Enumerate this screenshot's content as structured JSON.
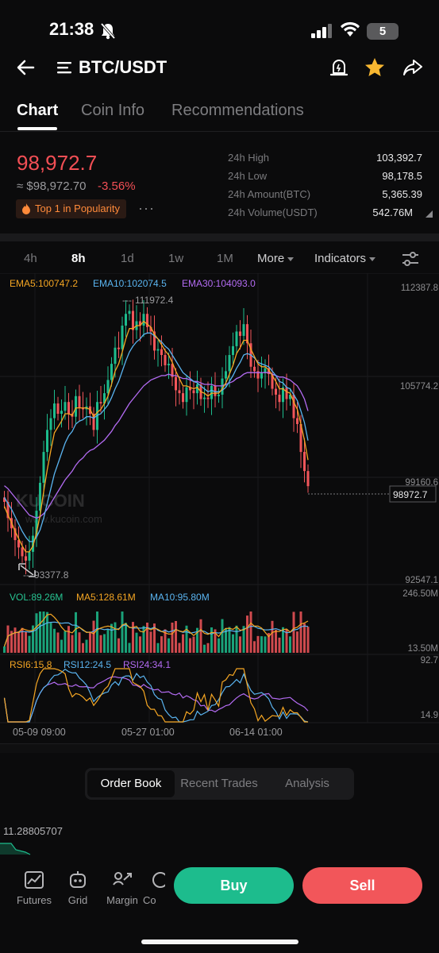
{
  "status_bar": {
    "time": "21:38",
    "battery": "5"
  },
  "header": {
    "pair": "BTC/USDT"
  },
  "tabs": [
    "Chart",
    "Coin Info",
    "Recommendations"
  ],
  "ticker": {
    "last_price": "98,972.7",
    "fiat_price": "≈ $98,972.70",
    "change": "-3.56%",
    "badge": "Top 1 in Popularity",
    "more": "···"
  },
  "stats": {
    "high_label": "24h High",
    "high": "103,392.7",
    "low_label": "24h Low",
    "low": "98,178.5",
    "amount_label": "24h Amount(BTC)",
    "amount": "5,365.39",
    "volume_label": "24h Volume(USDT)",
    "volume": "542.76M"
  },
  "timeframes": [
    "4h",
    "8h",
    "1d",
    "1w",
    "1M"
  ],
  "toolbar": {
    "more": "More",
    "indicators": "Indicators"
  },
  "chart_data": {
    "type": "candlestick",
    "interval": "8h",
    "indicators": {
      "ema5": "EMA5:100747.2",
      "ema10": "EMA10:102074.5",
      "ema30": "EMA30:104093.0"
    },
    "price_axis": [
      "112387.8",
      "105774.2",
      "99160.6",
      "92547.1"
    ],
    "price_range": [
      92547.1,
      112387.8
    ],
    "max_marker": "111972.4",
    "min_marker": "93377.8",
    "last_price_tag": "98972.7",
    "close_series": [
      97900,
      96800,
      96100,
      95300,
      94800,
      94200,
      93900,
      94500,
      95600,
      97300,
      99200,
      101300,
      102800,
      103600,
      104600,
      103900,
      104100,
      104700,
      103900,
      103700,
      105100,
      104300,
      104200,
      104400,
      103900,
      102800,
      104700,
      104600,
      105300,
      106200,
      107300,
      108400,
      108300,
      109900,
      110700,
      110900,
      109600,
      110200,
      109900,
      110700,
      109800,
      109500,
      108200,
      108300,
      107900,
      107200,
      107300,
      106400,
      105500,
      105300,
      104700,
      105700,
      105500,
      105300,
      105900,
      104900,
      105000,
      104900,
      105800,
      105100,
      105200,
      106300,
      106800,
      107900,
      108500,
      109500,
      109200,
      110000,
      108700,
      107100,
      106800,
      106300,
      106700,
      107000,
      106600,
      105600,
      105200,
      104700,
      105700,
      104900,
      105200,
      103600,
      103200,
      101300,
      100000,
      98972.7
    ],
    "ema5_series": [
      97600,
      97000,
      96500,
      95900,
      95400,
      94900,
      94500,
      94500,
      94900,
      95800,
      97000,
      98600,
      100100,
      101400,
      102600,
      103000,
      103400,
      103900,
      103900,
      103800,
      104300,
      104300,
      104300,
      104300,
      104200,
      103700,
      104000,
      104200,
      104600,
      105100,
      105900,
      106800,
      107300,
      108100,
      109000,
      109700,
      109700,
      109900,
      109900,
      110200,
      110000,
      109800,
      109300,
      109000,
      108600,
      108200,
      107900,
      107400,
      106800,
      106300,
      105800,
      105800,
      105700,
      105600,
      105700,
      105400,
      105300,
      105100,
      105300,
      105300,
      105300,
      105600,
      106000,
      106600,
      107200,
      108000,
      108400,
      108900,
      108900,
      108300,
      107800,
      107300,
      107100,
      107100,
      106900,
      106500,
      106100,
      105600,
      105600,
      105400,
      105300,
      104700,
      104200,
      103200,
      102100,
      100747.2
    ],
    "ema10_series": [
      98200,
      97800,
      97400,
      96900,
      96400,
      95900,
      95500,
      95200,
      95200,
      95500,
      96000,
      96800,
      97800,
      98800,
      99800,
      100500,
      101200,
      101900,
      102400,
      102700,
      103200,
      103400,
      103500,
      103700,
      103700,
      103600,
      103800,
      103900,
      104200,
      104500,
      105000,
      105600,
      106100,
      106800,
      107500,
      108100,
      108500,
      108800,
      109000,
      109300,
      109400,
      109400,
      109200,
      109000,
      108800,
      108500,
      108300,
      107900,
      107500,
      107100,
      106700,
      106500,
      106300,
      106100,
      106000,
      105800,
      105600,
      105400,
      105500,
      105400,
      105400,
      105500,
      105700,
      106100,
      106500,
      107000,
      107400,
      107900,
      108000,
      107900,
      107700,
      107400,
      107300,
      107200,
      107100,
      106800,
      106500,
      106100,
      106000,
      105700,
      105600,
      105200,
      104800,
      104100,
      103300,
      102074.5
    ],
    "ema30_series": [
      99000,
      98800,
      98500,
      98200,
      97900,
      97600,
      97300,
      97000,
      96900,
      96800,
      96900,
      97100,
      97400,
      97800,
      98200,
      98600,
      99000,
      99400,
      99700,
      100000,
      100400,
      100700,
      100900,
      101200,
      101400,
      101500,
      101700,
      101900,
      102100,
      102400,
      102700,
      103100,
      103400,
      103800,
      104200,
      104600,
      104900,
      105200,
      105500,
      105800,
      106000,
      106200,
      106300,
      106400,
      106500,
      106500,
      106600,
      106500,
      106500,
      106400,
      106300,
      106300,
      106200,
      106100,
      106100,
      106000,
      105900,
      105900,
      105900,
      105800,
      105800,
      105800,
      105900,
      106000,
      106100,
      106300,
      106400,
      106600,
      106700,
      106700,
      106700,
      106700,
      106700,
      106700,
      106700,
      106600,
      106500,
      106400,
      106400,
      106300,
      106200,
      106000,
      105800,
      105400,
      104900,
      104093.0
    ],
    "volume": {
      "vol": "VOL:89.26M",
      "ma5": "MA5:128.61M",
      "ma10": "MA10:95.80M",
      "axis": [
        "246.50M",
        "13.50M"
      ]
    },
    "rsi": {
      "rsi6": "RSI6:15.8",
      "rsi12": "RSI12:24.5",
      "rsi24": "RSI24:34.1",
      "axis": [
        "92.7",
        "14.9"
      ]
    },
    "x_axis": [
      "05-09 09:00",
      "05-27 01:00",
      "06-14 01:00"
    ],
    "watermark": {
      "brand": "KUCOIN",
      "url": "www.kucoin.com"
    }
  },
  "orderbook_tabs": [
    "Order Book",
    "Recent Trades",
    "Analysis"
  ],
  "orderbook_value": "11.28805707",
  "bottom_nav": [
    "Futures",
    "Grid",
    "Margin",
    "Co"
  ],
  "actions": {
    "buy": "Buy",
    "sell": "Sell"
  },
  "colors": {
    "up": "#1dbc8d",
    "down": "#f2565a",
    "ema5": "#f5a623",
    "ema10": "#5ab4f0",
    "ema30": "#b36bf2"
  }
}
